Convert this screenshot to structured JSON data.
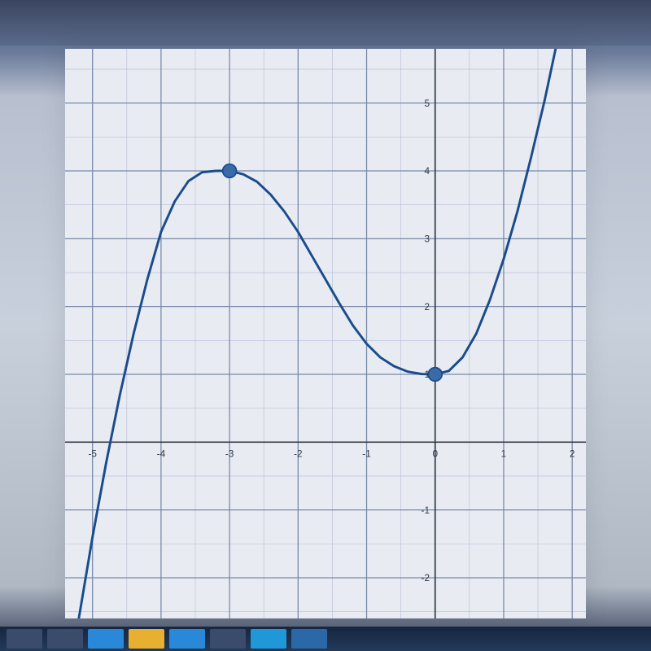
{
  "chart": {
    "type": "line",
    "background_color": "#e8ecf2",
    "grid_minor_color": "#b8c0d8",
    "grid_major_color": "#7888a8",
    "axis_color": "#303845",
    "x_domain": [
      -5.4,
      2.2
    ],
    "y_domain": [
      -2.6,
      5.8
    ],
    "x_ticks": [
      -5,
      -4,
      -3,
      -2,
      -1,
      0,
      1,
      2
    ],
    "x_tick_labels": [
      "-5",
      "-4",
      "-3",
      "-2",
      "-1",
      "0",
      "1",
      "2"
    ],
    "y_ticks": [
      -2,
      -1,
      1,
      2,
      3,
      4,
      5
    ],
    "y_tick_labels": [
      "-2",
      "-1",
      "1",
      "2",
      "3",
      "4",
      "5"
    ],
    "tick_font_size_pt": 10,
    "tick_color": "#303845",
    "curve": {
      "color": "#1a4b8c",
      "line_width": 0.035,
      "points_x": [
        -5.2,
        -5.0,
        -4.8,
        -4.6,
        -4.4,
        -4.2,
        -4.0,
        -3.8,
        -3.6,
        -3.4,
        -3.2,
        -3.0,
        -2.8,
        -2.6,
        -2.4,
        -2.2,
        -2.0,
        -1.8,
        -1.6,
        -1.4,
        -1.2,
        -1.0,
        -0.8,
        -0.6,
        -0.4,
        -0.2,
        0.0,
        0.2,
        0.4,
        0.6,
        0.8,
        1.0,
        1.2,
        1.4,
        1.6,
        1.8
      ],
      "points_y": [
        -2.6,
        -1.4,
        -0.3,
        0.7,
        1.6,
        2.4,
        3.1,
        3.55,
        3.85,
        3.98,
        4.0,
        4.0,
        3.95,
        3.84,
        3.65,
        3.4,
        3.1,
        2.75,
        2.4,
        2.05,
        1.72,
        1.45,
        1.25,
        1.12,
        1.04,
        1.005,
        1.0,
        1.05,
        1.25,
        1.6,
        2.1,
        2.7,
        3.4,
        4.2,
        5.05,
        6.0
      ]
    },
    "markers": [
      {
        "x": -3,
        "y": 4,
        "r": 0.1,
        "fill": "#3b6aa8",
        "stroke": "#1a4b8c"
      },
      {
        "x": 0,
        "y": 1,
        "r": 0.1,
        "fill": "#3b6aa8",
        "stroke": "#1a4b8c"
      }
    ]
  },
  "taskbar": {
    "items_colors": [
      "#3a4c6a",
      "#3a4c6a",
      "#2a88d8",
      "#e8b030",
      "#2a88d8",
      "#3a4c6a",
      "#2098d8",
      "#2a68a8"
    ]
  }
}
